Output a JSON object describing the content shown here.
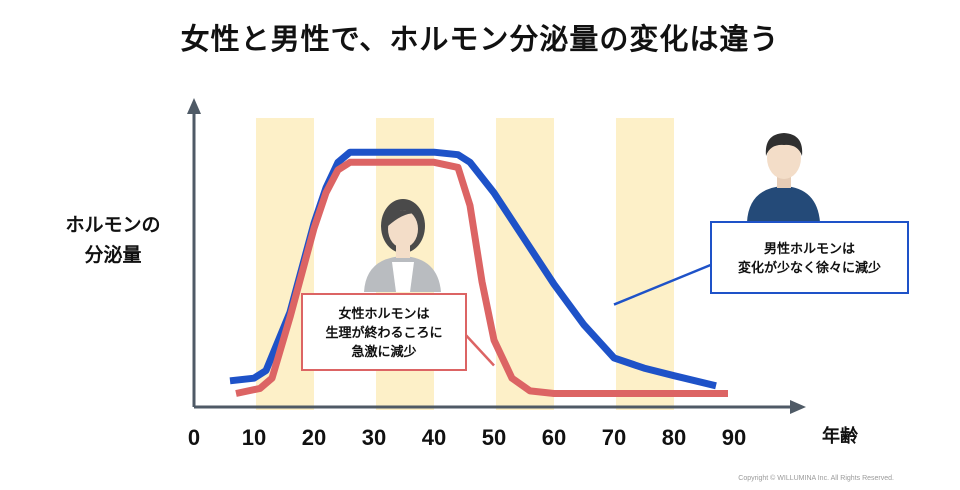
{
  "chart_data": {
    "type": "line",
    "title": "女性と男性で、ホルモン分泌量の変化は違う",
    "ylabel_lines": [
      "ホルモンの",
      "分泌量"
    ],
    "xlabel": "年齢",
    "x_ticks": [
      "0",
      "10",
      "20",
      "30",
      "40",
      "50",
      "60",
      "70",
      "80",
      "90"
    ],
    "xlim": [
      0,
      100
    ],
    "ylim": [
      0,
      100
    ],
    "highlight_bands": [
      [
        10,
        20
      ],
      [
        30,
        40
      ],
      [
        50,
        60
      ],
      [
        70,
        80
      ]
    ],
    "band_color": "#fdf0c8",
    "series": [
      {
        "key": "male",
        "color": "#1e52c8",
        "x": [
          6,
          10,
          12,
          16,
          20,
          22,
          24,
          26,
          40,
          44,
          46,
          50,
          55,
          60,
          65,
          70,
          75,
          80,
          87
        ],
        "y": [
          6,
          7,
          10,
          33,
          68,
          82,
          92,
          96,
          96,
          95,
          92,
          80,
          62,
          44,
          28,
          15,
          11,
          8,
          4
        ]
      },
      {
        "key": "female",
        "color": "#dc6464",
        "x": [
          7,
          11,
          13,
          16,
          20,
          22,
          24,
          26,
          40,
          44,
          46,
          48,
          50,
          53,
          56,
          60,
          70,
          80,
          89
        ],
        "y": [
          1,
          3,
          7,
          31,
          66,
          80,
          89,
          92,
          92,
          90,
          75,
          45,
          22,
          7,
          2,
          1,
          1,
          1,
          1
        ]
      }
    ],
    "callouts": [
      {
        "key": "female",
        "lines": [
          "女性ホルモンは",
          "生理が終わるころに",
          "急激に減少"
        ],
        "border": "#dc6464",
        "pointer_to": [
          50,
          12
        ]
      },
      {
        "key": "male",
        "lines": [
          "男性ホルモンは",
          "変化が少なく徐々に減少"
        ],
        "border": "#1e52c8",
        "pointer_to": [
          70,
          36
        ]
      }
    ]
  },
  "figures": {
    "woman": {
      "hair": "#4a4a4a",
      "skin": "#f3ddc8",
      "top": "#b9bcc0",
      "inner": "#ffffff"
    },
    "man": {
      "hair": "#2f2f2f",
      "skin": "#f3ddc8",
      "top": "#244a78"
    }
  },
  "axis_color": "#4f5a66",
  "copyright": "Copyright © WILLUMINA Inc. All Rights Reserved."
}
